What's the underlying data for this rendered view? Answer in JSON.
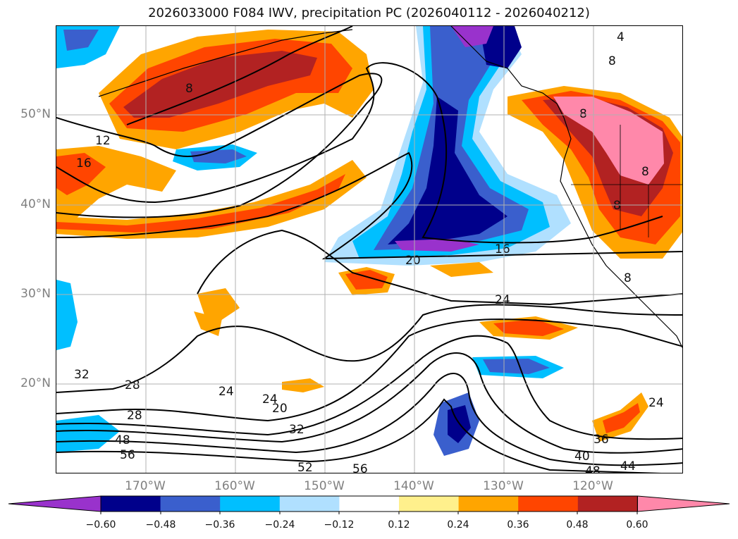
{
  "title": "2026033000 F084 IWV, precipitation PC (2026040112 - 2026040212)",
  "lat_labels": [
    "50°N",
    "40°N",
    "30°N",
    "20°N"
  ],
  "lon_labels": [
    "170°W",
    "160°W",
    "150°W",
    "140°W",
    "130°W",
    "120°W"
  ],
  "colorbar": {
    "ticks": [
      "−0.60",
      "−0.48",
      "−0.36",
      "−0.24",
      "−0.12",
      "0.12",
      "0.24",
      "0.36",
      "0.48",
      "0.60"
    ],
    "colors": [
      "#9932cc",
      "#00008b",
      "#3a5fcd",
      "#00bfff",
      "#b0e0ff",
      "#ffffff",
      "#fff08c",
      "#ffa500",
      "#ff4500",
      "#b22222",
      "#ff88aa"
    ]
  },
  "contour_labels": [
    "4",
    "8",
    "8",
    "8",
    "8",
    "8",
    "8",
    "12",
    "16",
    "16",
    "20",
    "20",
    "24",
    "24",
    "24",
    "24",
    "28",
    "28",
    "32",
    "32",
    "36",
    "40",
    "44",
    "48",
    "48",
    "52",
    "56",
    "56"
  ],
  "colors": {
    "grid": "#b0b0b0",
    "coast": "#000000",
    "contour": "#000000",
    "axis_label": "#808080"
  }
}
